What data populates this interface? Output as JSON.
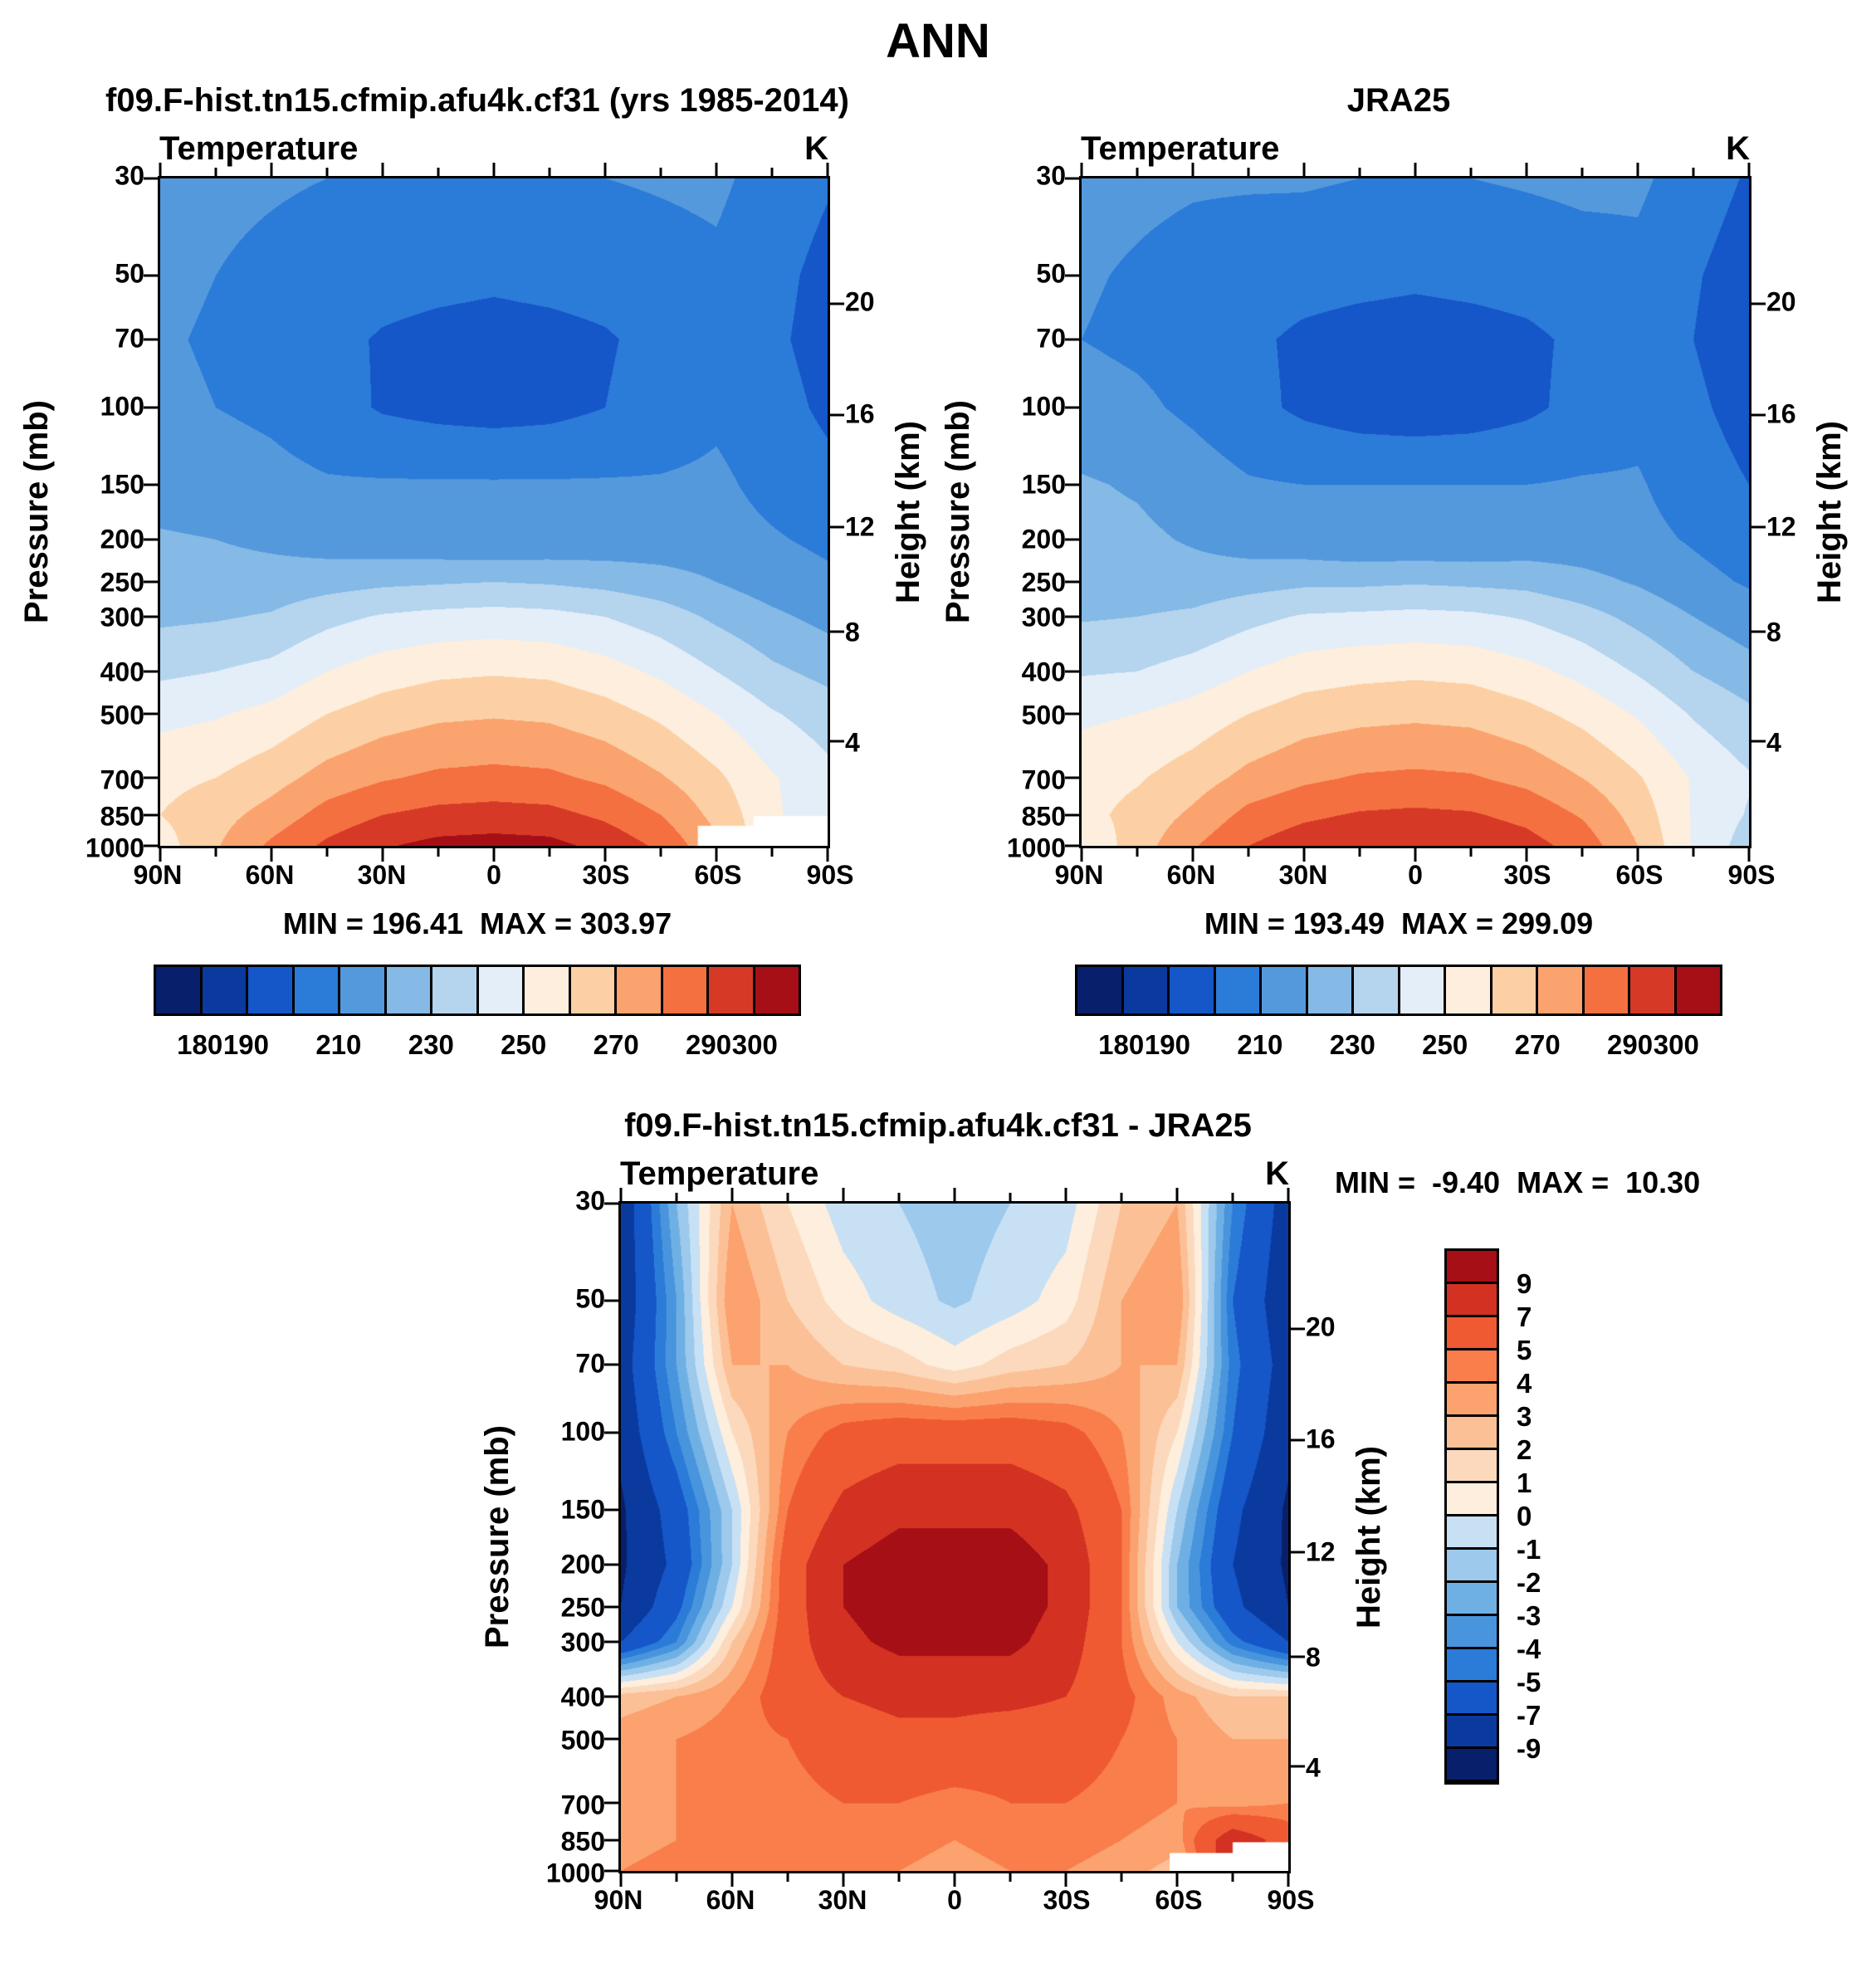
{
  "main_title": "ANN",
  "axes": {
    "pressure_label": "Pressure (mb)",
    "height_label": "Height (km)",
    "pressure_ticks": [
      30,
      50,
      70,
      100,
      150,
      200,
      250,
      300,
      400,
      500,
      700,
      850,
      1000
    ],
    "height_ticks": [
      {
        "label": "20",
        "p": 58
      },
      {
        "label": "16",
        "p": 104
      },
      {
        "label": "12",
        "p": 187
      },
      {
        "label": "8",
        "p": 324
      },
      {
        "label": "4",
        "p": 577
      }
    ],
    "lat_ticks": [
      {
        "label": "90N",
        "lat": 90
      },
      {
        "label": "60N",
        "lat": 60
      },
      {
        "label": "30N",
        "lat": 30
      },
      {
        "label": "0",
        "lat": 0
      },
      {
        "label": "30S",
        "lat": -30
      },
      {
        "label": "60S",
        "lat": -60
      },
      {
        "label": "90S",
        "lat": -90
      }
    ],
    "lat_minor_ticks": [
      75,
      45,
      15,
      -15,
      -45,
      -75
    ]
  },
  "temp_scale": {
    "levels": [
      170,
      180,
      190,
      200,
      210,
      220,
      230,
      240,
      250,
      260,
      270,
      280,
      290,
      300,
      310
    ],
    "colors": [
      "#081f6b",
      "#0b3a9e",
      "#1556c9",
      "#2b7bd8",
      "#5599dd",
      "#85b9e6",
      "#b5d4ee",
      "#e4eef8",
      "#fdeedd",
      "#fcd0a4",
      "#fba36e",
      "#f47040",
      "#d63a26",
      "#a50f15"
    ],
    "bar_labels": [
      {
        "label": "180",
        "b": 1
      },
      {
        "label": "190",
        "b": 2
      },
      {
        "label": "210",
        "b": 4
      },
      {
        "label": "230",
        "b": 6
      },
      {
        "label": "250",
        "b": 8
      },
      {
        "label": "270",
        "b": 10
      },
      {
        "label": "290",
        "b": 12
      },
      {
        "label": "300",
        "b": 13
      }
    ]
  },
  "diff_scale": {
    "levels": [
      -11,
      -9,
      -7,
      -5,
      -4,
      -3,
      -2,
      -1,
      0,
      1,
      2,
      3,
      4,
      5,
      7,
      9,
      11
    ],
    "colors": [
      "#081f6b",
      "#0b3a9e",
      "#1556c9",
      "#2b7bd8",
      "#4895dd",
      "#6fb0e4",
      "#9cc9ec",
      "#c8e0f4",
      "#fdeedd",
      "#fcd9bc",
      "#fcc096",
      "#fba26e",
      "#f97e4c",
      "#ef5a32",
      "#d33122",
      "#a50f15"
    ],
    "bar_labels": [
      "9",
      "7",
      "5",
      "4",
      "3",
      "2",
      "1",
      "0",
      "-1",
      "-2",
      "-3",
      "-4",
      "-5",
      "-7",
      "-9"
    ]
  },
  "panels": [
    {
      "title": "f09.F-hist.tn15.cfmip.afu4k.cf31 (yrs 1985-2014)",
      "field_label": "Temperature",
      "unit_label": "K",
      "stats": "MIN = 196.41  MAX = 303.97"
    },
    {
      "title": "JRA25",
      "field_label": "Temperature",
      "unit_label": "K",
      "stats": "MIN = 193.49  MAX = 299.09"
    },
    {
      "title": "f09.F-hist.tn15.cfmip.afu4k.cf31 - JRA25",
      "field_label": "Temperature",
      "unit_label": "K",
      "stats": "MIN =  -9.40  MAX =  10.30"
    }
  ],
  "chart_data": [
    {
      "type": "heatmap",
      "title": "f09.F-hist.tn15.cfmip.afu4k.cf31 (yrs 1985-2014)",
      "subtitle": "Temperature",
      "units": "K",
      "xlabel": "Latitude",
      "ylabel": "Pressure (mb)",
      "y2label": "Height (km)",
      "scale": "temp",
      "min": 196.41,
      "max": 303.97,
      "x_lats": [
        90,
        75,
        60,
        45,
        30,
        15,
        0,
        -15,
        -30,
        -45,
        -60,
        -75,
        -90
      ],
      "y_pressures_mb": [
        30,
        50,
        70,
        100,
        150,
        200,
        250,
        300,
        400,
        500,
        700,
        850,
        1000
      ],
      "values": [
        [
          213,
          212,
          211,
          210,
          210,
          209,
          209,
          209,
          210,
          211,
          212,
          206,
          201
        ],
        [
          212,
          210,
          208,
          206,
          204,
          203,
          202,
          203,
          204,
          206,
          208,
          203,
          197
        ],
        [
          211,
          209,
          207,
          203,
          199,
          197,
          196,
          197,
          199,
          203,
          207,
          202,
          196
        ],
        [
          212,
          210,
          208,
          204,
          199,
          197,
          196,
          197,
          200,
          204,
          208,
          204,
          198
        ],
        [
          216,
          215,
          213,
          211,
          211,
          211,
          211,
          211,
          211,
          211,
          212,
          207,
          203
        ],
        [
          221,
          220,
          218,
          215,
          213,
          212,
          211,
          212,
          213,
          214,
          214,
          211,
          208
        ],
        [
          224,
          224,
          224,
          226,
          228,
          229,
          230,
          229,
          227,
          224,
          220,
          215,
          212
        ],
        [
          228,
          229,
          231,
          237,
          241,
          243,
          244,
          243,
          240,
          235,
          228,
          222,
          217
        ],
        [
          238,
          240,
          243,
          250,
          255,
          258,
          259,
          258,
          254,
          248,
          240,
          232,
          227
        ],
        [
          247,
          249,
          253,
          260,
          265,
          268,
          269,
          268,
          264,
          258,
          250,
          241,
          235
        ],
        [
          257,
          260,
          266,
          274,
          279,
          282,
          283,
          282,
          278,
          271,
          262,
          251,
          243
        ],
        [
          260,
          266,
          274,
          284,
          290,
          293,
          294,
          293,
          288,
          280,
          267,
          252,
          242
        ],
        [
          255,
          269,
          282,
          292,
          299,
          303,
          304,
          303,
          297,
          288,
          272,
          252,
          238
        ]
      ],
      "masks": [
        {
          "lat0": -55,
          "lat1": -90,
          "p0": 900,
          "p1": 1002
        },
        {
          "lat0": -70,
          "lat1": -90,
          "p0": 855,
          "p1": 1002
        }
      ]
    },
    {
      "type": "heatmap",
      "title": "JRA25",
      "subtitle": "Temperature",
      "units": "K",
      "xlabel": "Latitude",
      "ylabel": "Pressure (mb)",
      "y2label": "Height (km)",
      "scale": "temp",
      "min": 193.49,
      "max": 299.09,
      "x_lats": [
        90,
        75,
        60,
        45,
        30,
        15,
        0,
        -15,
        -30,
        -45,
        -60,
        -75,
        -90
      ],
      "y_pressures_mb": [
        30,
        50,
        70,
        100,
        150,
        200,
        250,
        300,
        400,
        500,
        700,
        850,
        1000
      ],
      "values": [
        [
          213,
          212,
          211,
          211,
          211,
          210,
          210,
          210,
          211,
          212,
          212,
          205,
          199
        ],
        [
          211,
          209,
          207,
          205,
          204,
          203,
          202,
          203,
          204,
          206,
          207,
          201,
          195
        ],
        [
          210,
          208,
          206,
          202,
          198,
          196,
          195,
          196,
          198,
          202,
          206,
          200,
          194
        ],
        [
          214,
          212,
          208,
          203,
          198,
          195,
          194,
          195,
          198,
          203,
          207,
          202,
          196
        ],
        [
          221,
          219,
          215,
          211,
          210,
          210,
          210,
          210,
          210,
          211,
          211,
          205,
          200
        ],
        [
          223,
          222,
          219,
          215,
          213,
          211,
          211,
          211,
          213,
          214,
          213,
          209,
          205
        ],
        [
          225,
          224,
          224,
          226,
          228,
          228,
          229,
          228,
          227,
          223,
          219,
          213,
          209
        ],
        [
          229,
          230,
          232,
          237,
          241,
          242,
          243,
          242,
          239,
          234,
          227,
          220,
          214
        ],
        [
          239,
          240,
          244,
          250,
          255,
          257,
          258,
          257,
          253,
          247,
          239,
          230,
          224
        ],
        [
          248,
          250,
          254,
          260,
          265,
          267,
          268,
          267,
          263,
          257,
          249,
          239,
          232
        ],
        [
          256,
          259,
          265,
          273,
          278,
          281,
          282,
          281,
          277,
          270,
          261,
          249,
          241
        ],
        [
          257,
          263,
          272,
          283,
          288,
          291,
          292,
          291,
          287,
          279,
          266,
          249,
          239
        ],
        [
          251,
          265,
          279,
          290,
          296,
          298,
          299,
          298,
          294,
          286,
          270,
          249,
          235
        ]
      ],
      "masks": []
    },
    {
      "type": "heatmap",
      "title": "f09.F-hist.tn15.cfmip.afu4k.cf31 - JRA25",
      "subtitle": "Temperature",
      "units": "K",
      "xlabel": "Latitude",
      "ylabel": "Pressure (mb)",
      "y2label": "Height (km)",
      "scale": "diff",
      "min": -9.4,
      "max": 10.3,
      "x_lats": [
        90,
        75,
        60,
        45,
        30,
        15,
        0,
        -15,
        -30,
        -45,
        -60,
        -75,
        -90
      ],
      "y_pressures_mb": [
        30,
        50,
        70,
        100,
        150,
        200,
        250,
        300,
        400,
        500,
        700,
        850,
        1000
      ],
      "values": [
        [
          -8.5,
          -2,
          3,
          1,
          -0.5,
          -1,
          -1.5,
          -1,
          -0.5,
          2,
          3,
          -4,
          -8
        ],
        [
          -8.5,
          -3,
          4,
          2,
          0.5,
          -0.5,
          -1.2,
          -0.5,
          0.5,
          3,
          4,
          -5,
          -8.5
        ],
        [
          -8,
          -3,
          3,
          3,
          2,
          1.5,
          0.5,
          1.5,
          2,
          3,
          3,
          -4.5,
          -8
        ],
        [
          -8.5,
          -4,
          1,
          4,
          5.5,
          6,
          6,
          6,
          5.5,
          4,
          1,
          -5,
          -8.5
        ],
        [
          -9.3,
          -6,
          -1,
          5,
          7.5,
          8.5,
          8.5,
          8.5,
          7.5,
          5,
          -1,
          -6.5,
          -9.3
        ],
        [
          -9.3,
          -6.5,
          -1,
          6,
          9,
          10,
          10,
          10,
          8.5,
          5,
          -2,
          -7,
          -9.3
        ],
        [
          -9,
          -5.5,
          0,
          6,
          9,
          10,
          10,
          10,
          8.5,
          5,
          -2,
          -6.5,
          -9
        ],
        [
          -7,
          -4,
          2,
          6,
          8.5,
          9.5,
          9.5,
          9.5,
          8,
          5,
          0,
          -4.5,
          -7
        ],
        [
          2.5,
          3,
          4,
          6,
          7,
          7.5,
          7.5,
          7.5,
          7,
          5.5,
          3.5,
          2,
          2
        ],
        [
          3.5,
          4,
          4.5,
          5,
          6,
          6.5,
          6.5,
          6,
          6,
          5,
          4,
          3,
          3
        ],
        [
          4,
          4,
          4.5,
          4.5,
          5,
          5,
          4.5,
          5,
          5,
          4.5,
          4,
          3.5,
          4
        ],
        [
          3.5,
          4,
          4.5,
          4,
          4.5,
          4.5,
          4,
          4.5,
          4.5,
          4,
          3.5,
          8.5,
          6
        ],
        [
          4,
          4.5,
          5,
          4.5,
          4,
          4,
          3.5,
          4,
          4,
          3.5,
          2.5,
          9,
          4
        ]
      ],
      "masks": [
        {
          "lat0": -58,
          "lat1": -90,
          "p0": 910,
          "p1": 1002
        },
        {
          "lat0": -75,
          "lat1": -90,
          "p0": 860,
          "p1": 1002
        }
      ]
    }
  ]
}
